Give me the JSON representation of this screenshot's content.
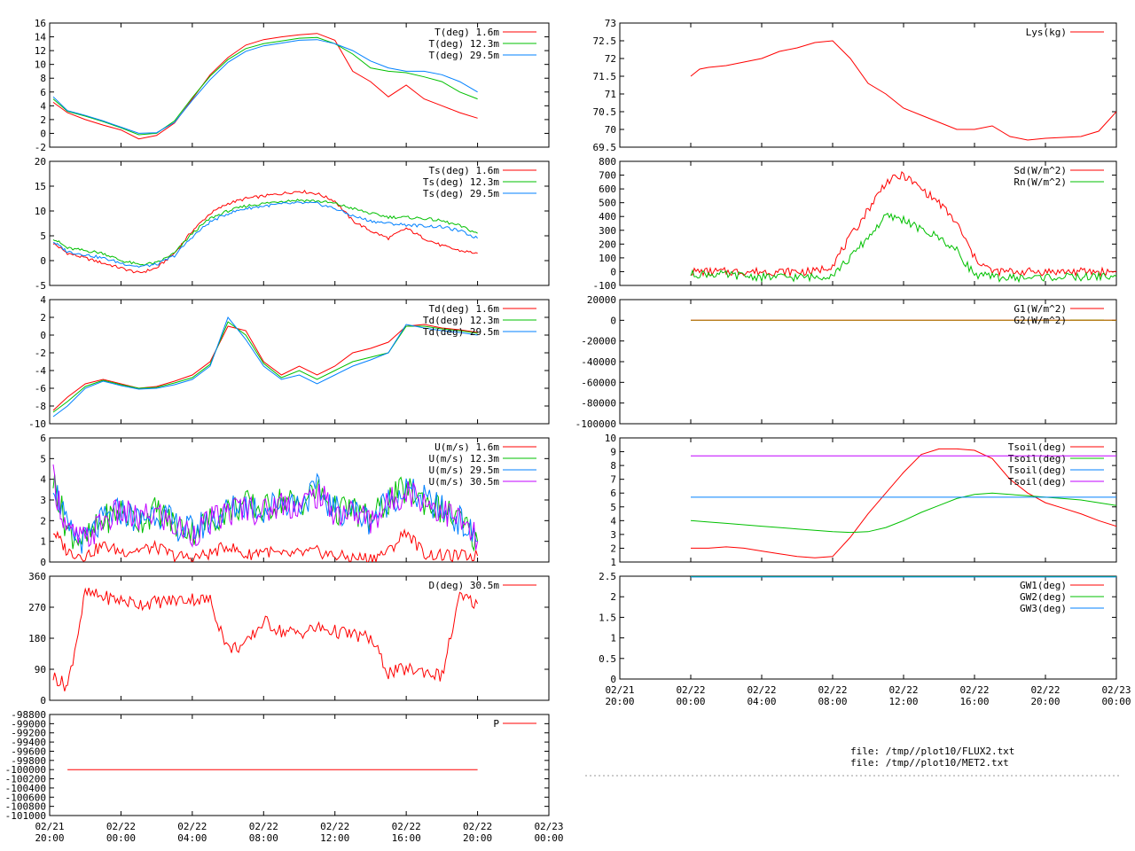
{
  "x_ticks": [
    "02/21\n20:00",
    "02/22\n00:00",
    "02/22\n04:00",
    "02/22\n08:00",
    "02/22\n12:00",
    "02/22\n16:00",
    "02/22\n20:00",
    "02/23\n00:00"
  ],
  "files": [
    "file: /tmp//plot10/FLUX2.txt",
    "file: /tmp//plot10/MET2.txt"
  ],
  "colors": {
    "red": "#ff0000",
    "green": "#00c000",
    "blue": "#0080ff",
    "magenta": "#c000ff",
    "olive": "#a08000"
  },
  "chart_data": [
    {
      "id": "temp",
      "type": "line",
      "ylim": [
        -2,
        16
      ],
      "yticks": [
        "-2",
        "0",
        "2",
        "4",
        "6",
        "8",
        "10",
        "12",
        "14",
        "16"
      ],
      "x": [
        0.2,
        1,
        2,
        3,
        4,
        5,
        6,
        7,
        8,
        9,
        10,
        11,
        12,
        13,
        14,
        15,
        16,
        17,
        18,
        19,
        20,
        21,
        22,
        23,
        24
      ],
      "series": [
        {
          "name": "T(deg)  1.6m",
          "color": "red",
          "values": [
            4.5,
            3.0,
            2.0,
            1.2,
            0.5,
            -0.8,
            -0.3,
            1.5,
            5.0,
            8.5,
            11.0,
            12.8,
            13.6,
            14.0,
            14.3,
            14.5,
            13.5,
            9.0,
            7.5,
            5.3,
            7.0,
            5.0,
            4.0,
            3.0,
            2.2
          ]
        },
        {
          "name": "T(deg) 12.3m",
          "color": "green",
          "values": [
            5.0,
            3.2,
            2.5,
            1.7,
            0.8,
            -0.2,
            0.0,
            1.8,
            5.2,
            8.3,
            10.7,
            12.3,
            13.0,
            13.4,
            13.8,
            13.9,
            13.0,
            11.5,
            9.5,
            9.0,
            8.8,
            8.2,
            7.5,
            6.0,
            5.0
          ]
        },
        {
          "name": "T(deg) 29.5m",
          "color": "blue",
          "values": [
            5.3,
            3.3,
            2.6,
            1.8,
            0.9,
            0.0,
            0.1,
            1.6,
            4.8,
            7.8,
            10.3,
            11.9,
            12.7,
            13.1,
            13.5,
            13.6,
            13.0,
            12.0,
            10.5,
            9.5,
            9.0,
            9.0,
            8.5,
            7.5,
            6.0
          ]
        }
      ]
    },
    {
      "id": "tsurf",
      "type": "line",
      "ylim": [
        -5,
        20
      ],
      "yticks": [
        "-5",
        "0",
        "5",
        "10",
        "15",
        "20"
      ],
      "x": [
        0.2,
        1,
        2,
        3,
        4,
        5,
        6,
        7,
        8,
        9,
        10,
        11,
        12,
        13,
        14,
        15,
        16,
        17,
        18,
        19,
        20,
        21,
        22,
        23,
        24
      ],
      "series": [
        {
          "name": "Ts(deg)  1.6m",
          "color": "red",
          "values": [
            3.5,
            1.5,
            0.5,
            -0.5,
            -1.5,
            -2.5,
            -1.5,
            1.5,
            6.0,
            9.5,
            11.5,
            12.5,
            13.0,
            13.5,
            14.0,
            13.5,
            12.0,
            8.0,
            6.0,
            4.5,
            6.5,
            4.5,
            3.0,
            2.0,
            1.5
          ]
        },
        {
          "name": "Ts(deg) 12.3m",
          "color": "green",
          "values": [
            4.5,
            2.5,
            2.0,
            1.5,
            0.0,
            -0.8,
            -0.5,
            1.5,
            5.5,
            8.5,
            10.0,
            11.0,
            11.5,
            12.0,
            12.2,
            12.0,
            11.5,
            10.5,
            9.5,
            8.8,
            8.7,
            8.5,
            8.0,
            7.0,
            5.5
          ]
        },
        {
          "name": "Ts(deg) 29.5m",
          "color": "blue",
          "values": [
            3.8,
            1.8,
            1.2,
            0.5,
            -0.5,
            -1.2,
            -0.8,
            1.0,
            4.8,
            7.8,
            9.5,
            10.5,
            11.0,
            11.4,
            11.6,
            11.5,
            10.5,
            9.0,
            8.0,
            7.5,
            7.2,
            7.0,
            6.8,
            6.0,
            4.5
          ]
        }
      ]
    },
    {
      "id": "dew",
      "type": "line",
      "ylim": [
        -10,
        4
      ],
      "yticks": [
        "-10",
        "-8",
        "-6",
        "-4",
        "-2",
        "0",
        "2",
        "4"
      ],
      "x": [
        0.2,
        1,
        2,
        3,
        4,
        5,
        6,
        7,
        8,
        9,
        10,
        11,
        12,
        13,
        14,
        15,
        16,
        17,
        18,
        19,
        20,
        21,
        22,
        23,
        24
      ],
      "series": [
        {
          "name": "Td(deg)  1.6m",
          "color": "red",
          "values": [
            -8.5,
            -7.0,
            -5.5,
            -5.0,
            -5.5,
            -6.0,
            -5.8,
            -5.2,
            -4.5,
            -3.0,
            1.0,
            0.5,
            -3.0,
            -4.5,
            -3.5,
            -4.5,
            -3.5,
            -2.0,
            -1.5,
            -0.8,
            1.0,
            1.2,
            0.8,
            0.6,
            0.3
          ]
        },
        {
          "name": "Td(deg) 12.3m",
          "color": "green",
          "values": [
            -8.7,
            -7.5,
            -5.8,
            -5.1,
            -5.6,
            -6.0,
            -5.9,
            -5.4,
            -4.8,
            -3.3,
            1.5,
            0.0,
            -3.2,
            -4.8,
            -4.0,
            -5.0,
            -4.0,
            -3.0,
            -2.5,
            -2.0,
            1.0,
            1.0,
            0.7,
            0.5,
            0.2
          ]
        },
        {
          "name": "Td(deg) 29.5m",
          "color": "blue",
          "values": [
            -9.2,
            -8.0,
            -6.0,
            -5.2,
            -5.7,
            -6.1,
            -6.0,
            -5.6,
            -5.0,
            -3.5,
            2.0,
            -0.5,
            -3.5,
            -5.0,
            -4.5,
            -5.5,
            -4.5,
            -3.5,
            -2.8,
            -2.0,
            1.2,
            0.8,
            0.5,
            0.3,
            0.0
          ]
        }
      ]
    },
    {
      "id": "wind",
      "type": "line",
      "ylim": [
        0,
        6
      ],
      "yticks": [
        "0",
        "1",
        "2",
        "3",
        "4",
        "5",
        "6"
      ],
      "x": [
        0.2,
        1,
        2,
        3,
        4,
        5,
        6,
        7,
        8,
        9,
        10,
        11,
        12,
        13,
        14,
        15,
        16,
        17,
        18,
        19,
        20,
        21,
        22,
        23,
        24
      ],
      "series": [
        {
          "name": "U(m/s)  1.6m",
          "color": "red",
          "values": [
            1.5,
            0.5,
            0.3,
            0.8,
            0.5,
            0.6,
            0.7,
            0.3,
            0.2,
            0.4,
            0.8,
            0.3,
            0.6,
            0.3,
            0.4,
            0.5,
            0.3,
            0.2,
            0.2,
            0.5,
            1.5,
            0.4,
            0.3,
            0.3,
            0.3
          ]
        },
        {
          "name": "U(m/s) 12.3m",
          "color": "green",
          "values": [
            4.0,
            1.5,
            1.0,
            2.0,
            2.5,
            2.0,
            2.5,
            1.8,
            1.5,
            2.0,
            2.5,
            2.8,
            2.5,
            3.0,
            2.8,
            3.5,
            2.5,
            2.5,
            2.0,
            3.0,
            3.5,
            3.0,
            2.5,
            2.0,
            1.0
          ]
        },
        {
          "name": "U(m/s) 29.5m",
          "color": "blue",
          "values": [
            4.0,
            1.5,
            1.0,
            2.0,
            2.5,
            2.0,
            2.5,
            1.8,
            1.5,
            2.0,
            2.5,
            2.8,
            2.5,
            3.0,
            2.8,
            3.5,
            2.5,
            2.5,
            2.0,
            3.0,
            3.5,
            3.0,
            2.5,
            2.0,
            1.0
          ]
        },
        {
          "name": "U(m/s) 30.5m",
          "color": "magenta",
          "values": [
            4.0,
            1.4,
            1.0,
            2.0,
            2.4,
            2.0,
            2.4,
            1.7,
            1.4,
            1.9,
            2.4,
            2.7,
            2.4,
            2.9,
            2.7,
            3.3,
            2.4,
            2.4,
            2.0,
            2.8,
            3.5,
            3.0,
            2.5,
            2.0,
            1.0
          ]
        }
      ]
    },
    {
      "id": "dir",
      "type": "line",
      "ylim": [
        0,
        360
      ],
      "yticks": [
        "0",
        "90",
        "180",
        "270",
        "360"
      ],
      "x": [
        0.2,
        1,
        2,
        3,
        4,
        5,
        6,
        7,
        8,
        9,
        10,
        11,
        12,
        13,
        14,
        15,
        16,
        17,
        18,
        19,
        20,
        21,
        22,
        23,
        24
      ],
      "series": [
        {
          "name": "D(deg)  30.5m",
          "color": "red",
          "values": [
            70,
            40,
            310,
            300,
            290,
            280,
            285,
            290,
            295,
            290,
            150,
            160,
            230,
            200,
            195,
            210,
            200,
            190,
            180,
            80,
            90,
            85,
            70,
            300,
            280
          ]
        }
      ]
    },
    {
      "id": "pres",
      "type": "line",
      "ylim": [
        -101000,
        -98800
      ],
      "yticks": [
        "-101000",
        "-100800",
        "-100600",
        "-100400",
        "-100200",
        "-100000",
        "-99800",
        "-99600",
        "-99400",
        "-99200",
        "-99000",
        "-98800"
      ],
      "x": [
        1,
        2,
        3,
        4,
        5,
        6,
        7,
        8,
        9,
        10,
        11,
        12,
        13,
        14,
        15,
        16,
        17,
        18,
        19,
        20,
        21,
        22,
        23,
        24
      ],
      "series": [
        {
          "name": "P",
          "color": "red",
          "values": [
            -100000,
            -100000,
            -100000,
            -100000,
            -100000,
            -100000,
            -100000,
            -100000,
            -100000,
            -100000,
            -100000,
            -100000,
            -100000,
            -100000,
            -100000,
            -100000,
            -100000,
            -100000,
            -100000,
            -100000,
            -100000,
            -100000,
            -100000,
            -100000
          ]
        }
      ]
    },
    {
      "id": "lys",
      "type": "line",
      "ylim": [
        69.5,
        73
      ],
      "yticks": [
        "69.5",
        "70",
        "70.5",
        "71",
        "71.5",
        "72",
        "72.5",
        "73"
      ],
      "x": [
        4,
        4.5,
        5,
        6,
        7,
        8,
        9,
        10,
        11,
        12,
        13,
        14,
        15,
        16,
        17,
        18,
        19,
        20,
        21,
        22,
        23,
        24,
        26,
        27,
        28
      ],
      "series": [
        {
          "name": "Lys(kg)",
          "color": "red",
          "values": [
            71.5,
            71.7,
            71.75,
            71.8,
            71.9,
            72.0,
            72.2,
            72.3,
            72.45,
            72.5,
            72.0,
            71.3,
            71.0,
            70.6,
            70.4,
            70.2,
            70.0,
            70.0,
            70.1,
            69.8,
            69.7,
            69.75,
            69.8,
            69.95,
            70.5
          ]
        }
      ]
    },
    {
      "id": "rad",
      "type": "line",
      "ylim": [
        -100,
        800
      ],
      "yticks": [
        "-100",
        "0",
        "100",
        "200",
        "300",
        "400",
        "500",
        "600",
        "700",
        "800"
      ],
      "x": [
        4,
        5,
        6,
        7,
        8,
        9,
        10,
        11,
        12,
        13,
        14,
        15,
        16,
        17,
        18,
        19,
        20,
        21,
        22,
        23,
        24,
        25,
        26,
        27,
        28
      ],
      "series": [
        {
          "name": "Sd(W/m^2)",
          "color": "red",
          "values": [
            0,
            0,
            0,
            0,
            0,
            0,
            0,
            0,
            50,
            250,
            450,
            650,
            700,
            600,
            500,
            350,
            100,
            0,
            0,
            0,
            0,
            0,
            0,
            0,
            0
          ]
        },
        {
          "name": "Rn(W/m^2)",
          "color": "green",
          "values": [
            -20,
            -15,
            -25,
            -30,
            -40,
            -40,
            -40,
            -40,
            -20,
            100,
            250,
            400,
            380,
            300,
            250,
            150,
            -20,
            -40,
            -45,
            -45,
            -40,
            -40,
            -40,
            -35,
            -35
          ]
        }
      ]
    },
    {
      "id": "gflux",
      "type": "line",
      "ylim": [
        -100000,
        20000
      ],
      "yticks": [
        "-100000",
        "-80000",
        "-60000",
        "-40000",
        "-20000",
        "0",
        "20000"
      ],
      "x": [
        4,
        28
      ],
      "series": [
        {
          "name": "G1(W/m^2)",
          "color": "red",
          "values": [
            0,
            0
          ]
        },
        {
          "name": "G2(W/m^2)",
          "color": "olive",
          "values": [
            0,
            0
          ]
        }
      ]
    },
    {
      "id": "tsoil",
      "type": "line",
      "ylim": [
        1,
        10
      ],
      "yticks": [
        "1",
        "2",
        "3",
        "4",
        "5",
        "6",
        "7",
        "8",
        "9",
        "10"
      ],
      "x": [
        4,
        5,
        6,
        7,
        8,
        9,
        10,
        11,
        12,
        13,
        14,
        15,
        16,
        17,
        18,
        19,
        20,
        21,
        22,
        23,
        24,
        25,
        26,
        27,
        28
      ],
      "series": [
        {
          "name": "Tsoil(deg)",
          "color": "red",
          "values": [
            2.0,
            2.0,
            2.1,
            2.0,
            1.8,
            1.6,
            1.4,
            1.3,
            1.4,
            2.8,
            4.5,
            6.0,
            7.5,
            8.8,
            9.2,
            9.2,
            9.1,
            8.5,
            7.0,
            6.0,
            5.3,
            4.9,
            4.5,
            4.0,
            3.6
          ]
        },
        {
          "name": "Tsoil(deg)",
          "color": "green",
          "values": [
            4.0,
            3.9,
            3.8,
            3.7,
            3.6,
            3.5,
            3.4,
            3.3,
            3.2,
            3.15,
            3.2,
            3.5,
            4.0,
            4.6,
            5.1,
            5.6,
            5.9,
            6.0,
            5.9,
            5.8,
            5.7,
            5.6,
            5.5,
            5.3,
            5.1
          ]
        },
        {
          "name": "Tsoil(deg)",
          "color": "blue",
          "values": [
            5.7,
            5.7,
            5.7,
            5.7,
            5.7,
            5.7,
            5.7,
            5.7,
            5.7,
            5.7,
            5.7,
            5.7,
            5.7,
            5.7,
            5.7,
            5.7,
            5.7,
            5.7,
            5.7,
            5.7,
            5.7,
            5.7,
            5.7,
            5.7,
            5.7
          ]
        },
        {
          "name": "Tsoil(deg)",
          "color": "magenta",
          "values": [
            8.7,
            8.7,
            8.7,
            8.7,
            8.7,
            8.7,
            8.7,
            8.7,
            8.7,
            8.7,
            8.7,
            8.7,
            8.7,
            8.7,
            8.7,
            8.7,
            8.7,
            8.7,
            8.7,
            8.7,
            8.7,
            8.7,
            8.7,
            8.7,
            8.7
          ]
        }
      ]
    },
    {
      "id": "gw",
      "type": "line",
      "ylim": [
        0,
        2.5
      ],
      "yticks": [
        "0",
        "0.5",
        "1",
        "1.5",
        "2",
        "2.5"
      ],
      "x": [
        4,
        28
      ],
      "series": [
        {
          "name": "GW1(deg)",
          "color": "red",
          "values": [
            2.5,
            2.5
          ]
        },
        {
          "name": "GW2(deg)",
          "color": "green",
          "values": [
            2.49,
            2.49
          ]
        },
        {
          "name": "GW3(deg)",
          "color": "blue",
          "values": [
            2.48,
            2.48
          ]
        }
      ]
    }
  ]
}
